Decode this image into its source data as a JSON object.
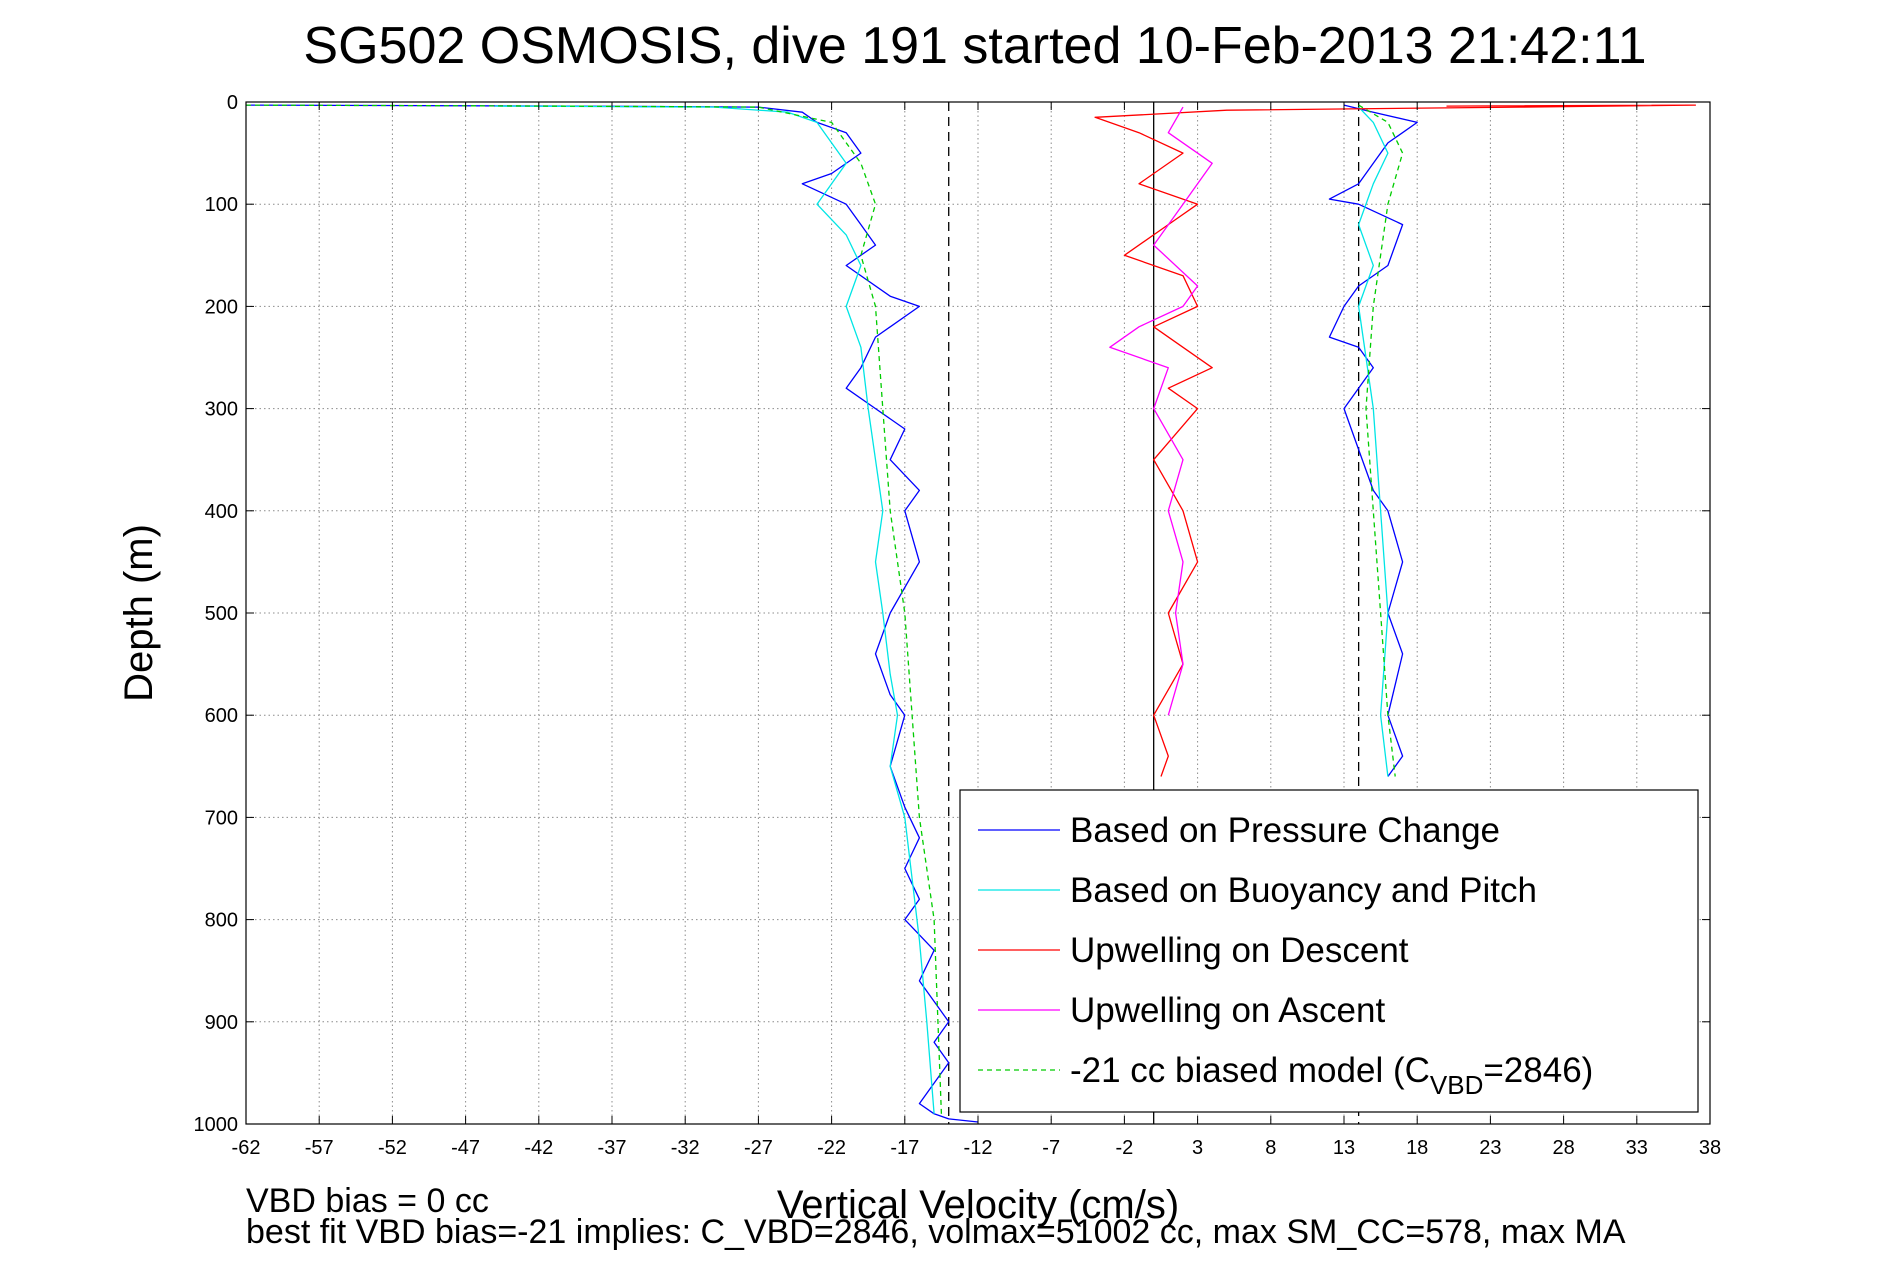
{
  "chart_data": {
    "type": "line",
    "title": "SG502 OSMOSIS, dive 191 started 10-Feb-2013 21:42:11",
    "xlabel": "Vertical Velocity (cm/s)",
    "ylabel": "Depth (m)",
    "xlim": [
      -62,
      38
    ],
    "ylim": [
      1000,
      0
    ],
    "y_reversed": true,
    "xticks": [
      -62,
      -57,
      -52,
      -47,
      -42,
      -37,
      -32,
      -27,
      -22,
      -17,
      -12,
      -7,
      -2,
      3,
      8,
      13,
      18,
      23,
      28,
      33,
      38
    ],
    "yticks": [
      0,
      100,
      200,
      300,
      400,
      500,
      600,
      700,
      800,
      900,
      1000
    ],
    "grid": true,
    "legend_position": "bottom-right",
    "reference_lines": [
      {
        "x": -14,
        "style": "dashed",
        "color": "#000000"
      },
      {
        "x": 0,
        "style": "solid",
        "color": "#000000"
      },
      {
        "x": 14,
        "style": "dashed",
        "color": "#000000"
      }
    ],
    "series": [
      {
        "name": "Based on Pressure Change",
        "color": "#0000ff",
        "style": "solid",
        "segments": [
          {
            "x": [
              -62,
              -40,
              -27,
              -24,
              -23,
              -21,
              -20,
              -22,
              -24,
              -21,
              -20,
              -19,
              -21,
              -18,
              -16,
              -19,
              -20,
              -21,
              -19,
              -17,
              -18,
              -16,
              -17,
              -16,
              -18,
              -19,
              -18,
              -17,
              -18,
              -17,
              -16,
              -17,
              -16,
              -17,
              -15,
              -16,
              -15,
              -14,
              -15,
              -14,
              -15,
              -16,
              -15,
              -14,
              -12
            ],
            "y": [
              3,
              4,
              5,
              10,
              20,
              30,
              50,
              70,
              80,
              100,
              120,
              140,
              160,
              190,
              200,
              230,
              260,
              280,
              300,
              320,
              350,
              380,
              400,
              450,
              500,
              540,
              580,
              600,
              650,
              690,
              720,
              750,
              780,
              800,
              830,
              860,
              880,
              900,
              920,
              940,
              960,
              980,
              990,
              995,
              998
            ]
          },
          {
            "x": [
              13,
              15,
              18,
              16,
              15,
              14,
              12,
              14,
              17,
              16,
              14,
              13,
              12,
              14,
              15,
              14,
              13,
              14,
              15,
              16,
              17,
              16,
              17,
              16,
              17,
              16
            ],
            "y": [
              3,
              10,
              20,
              40,
              60,
              80,
              95,
              100,
              120,
              160,
              180,
              200,
              230,
              240,
              260,
              280,
              300,
              340,
              380,
              400,
              450,
              500,
              540,
              600,
              640,
              660
            ]
          }
        ]
      },
      {
        "name": "Based on Buoyancy and Pitch",
        "color": "#00e5e5",
        "style": "solid",
        "segments": [
          {
            "x": [
              -45,
              -30,
              -25,
              -23,
              -22,
              -21,
              -22,
              -23,
              -21,
              -20,
              -21,
              -20,
              -19.5,
              -19,
              -18.5,
              -19,
              -18.5,
              -18,
              -17.5,
              -18,
              -17,
              -16.5,
              -16,
              -15.5,
              -15
            ],
            "y": [
              4,
              5,
              10,
              20,
              40,
              60,
              80,
              100,
              130,
              160,
              200,
              240,
              300,
              350,
              400,
              450,
              500,
              560,
              600,
              650,
              700,
              760,
              820,
              900,
              990
            ]
          },
          {
            "x": [
              14,
              15,
              16,
              15,
              14,
              15,
              14,
              14.5,
              15,
              15.5,
              16,
              15.5,
              16
            ],
            "y": [
              5,
              20,
              50,
              80,
              120,
              160,
              200,
              250,
              300,
              400,
              500,
              600,
              660
            ]
          }
        ]
      },
      {
        "name": "Upwelling on Descent",
        "color": "#ff0000",
        "style": "solid",
        "segments": [
          {
            "x": [
              20,
              37,
              25,
              5,
              -4,
              -1,
              2,
              -1,
              3,
              1,
              -2,
              2,
              3,
              0,
              2,
              4,
              1,
              3,
              0,
              2,
              3,
              1,
              2,
              0,
              1,
              0.5
            ],
            "y": [
              4,
              3,
              5,
              8,
              15,
              30,
              50,
              80,
              100,
              120,
              150,
              170,
              200,
              220,
              240,
              260,
              280,
              300,
              350,
              400,
              450,
              500,
              550,
              600,
              640,
              660
            ]
          }
        ]
      },
      {
        "name": "Upwelling on Ascent",
        "color": "#ff00ff",
        "style": "solid",
        "segments": [
          {
            "x": [
              2,
              1,
              4,
              2,
              0,
              3,
              2,
              -1,
              -3,
              1,
              0,
              2,
              1,
              2,
              1.5,
              2,
              1
            ],
            "y": [
              5,
              30,
              60,
              100,
              140,
              180,
              200,
              220,
              240,
              260,
              300,
              350,
              400,
              450,
              500,
              550,
              600
            ]
          }
        ]
      },
      {
        "name": "-21 cc biased model (C",
        "name_sub": "VBD",
        "name_suffix": "=2846)",
        "color": "#00cc00",
        "style": "dashed",
        "segments": [
          {
            "x": [
              -62,
              -40,
              -27,
              -22,
              -20,
              -19,
              -20,
              -19,
              -18.5,
              -18,
              -17,
              -16.5,
              -16,
              -15,
              -14.5
            ],
            "y": [
              3,
              4,
              5,
              20,
              60,
              100,
              150,
              200,
              300,
              400,
              500,
              600,
              700,
              800,
              990
            ]
          },
          {
            "x": [
              14,
              16,
              17,
              16,
              15,
              14.5,
              15,
              15.5,
              16,
              16.5
            ],
            "y": [
              3,
              20,
              50,
              100,
              200,
              300,
              400,
              500,
              600,
              660
            ]
          }
        ]
      }
    ],
    "annotations": [
      "VBD bias = 0 cc",
      "best fit VBD bias=-21 implies: C_VBD=2846, volmax=51002 cc, max SM_CC=578, max MA"
    ]
  }
}
